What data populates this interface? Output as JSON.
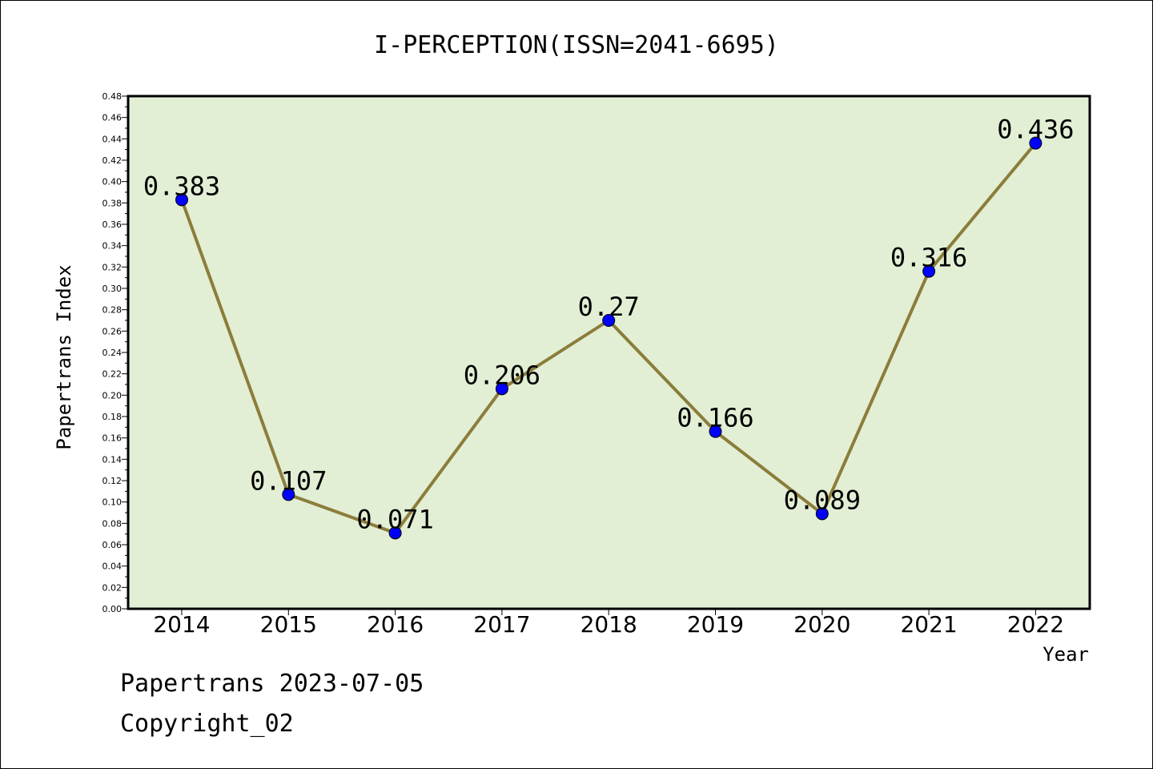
{
  "chart_data": {
    "type": "line",
    "title": "I-PERCEPTION(ISSN=2041-6695)",
    "xlabel": "Year",
    "ylabel": "Papertrans Index",
    "categories": [
      "2014",
      "2015",
      "2016",
      "2017",
      "2018",
      "2019",
      "2020",
      "2021",
      "2022"
    ],
    "series": [
      {
        "values": [
          0.383,
          0.107,
          0.071,
          0.206,
          0.27,
          0.166,
          0.089,
          0.316,
          0.436
        ],
        "labels": [
          "0.383",
          "0.107",
          "0.071",
          "0.206",
          "0.27",
          "0.166",
          "0.089",
          "0.316",
          "0.436"
        ],
        "line_color": "#8b7d3a",
        "marker_color": "#0000ff"
      }
    ],
    "ylim": [
      0,
      0.48
    ],
    "y_ticks": [
      "0.00",
      "0.02",
      "0.04",
      "0.06",
      "0.08",
      "0.10",
      "0.12",
      "0.14",
      "0.16",
      "0.18",
      "0.20",
      "0.22",
      "0.24",
      "0.26",
      "0.28",
      "0.30",
      "0.32",
      "0.34",
      "0.36",
      "0.38",
      "0.40",
      "0.42",
      "0.44",
      "0.46",
      "0.48"
    ],
    "plot_background": "#e2efd5",
    "grid": false
  },
  "footer": {
    "line1": "Papertrans 2023-07-05",
    "line2": "Copyright_02"
  }
}
